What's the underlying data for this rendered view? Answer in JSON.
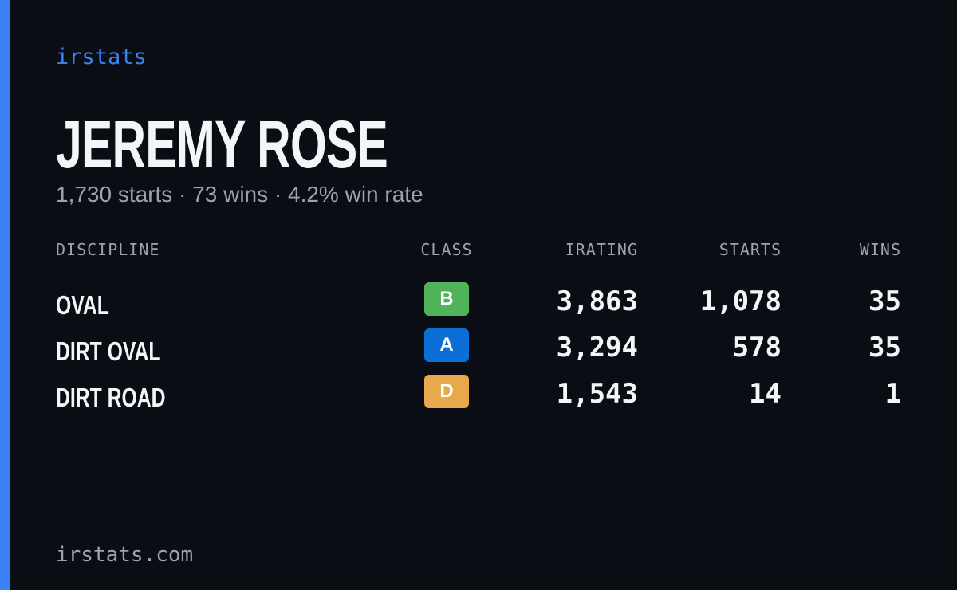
{
  "brand": "irstats",
  "driver": {
    "name": "JEREMY ROSE",
    "summary": "1,730 starts · 73 wins · 4.2% win rate"
  },
  "table": {
    "headers": [
      "DISCIPLINE",
      "CLASS",
      "IRATING",
      "STARTS",
      "WINS"
    ],
    "rows": [
      [
        "OVAL",
        "B",
        "3,863",
        "1,078",
        "35"
      ],
      [
        "DIRT OVAL",
        "A",
        "3,294",
        "578",
        "35"
      ],
      [
        "DIRT ROAD",
        "D",
        "1,543",
        "14",
        "1"
      ]
    ],
    "class_colors": {
      "B": "#4fb35a",
      "A": "#0b6fd6",
      "D": "#e8a94a"
    }
  },
  "footer": "irstats.com"
}
